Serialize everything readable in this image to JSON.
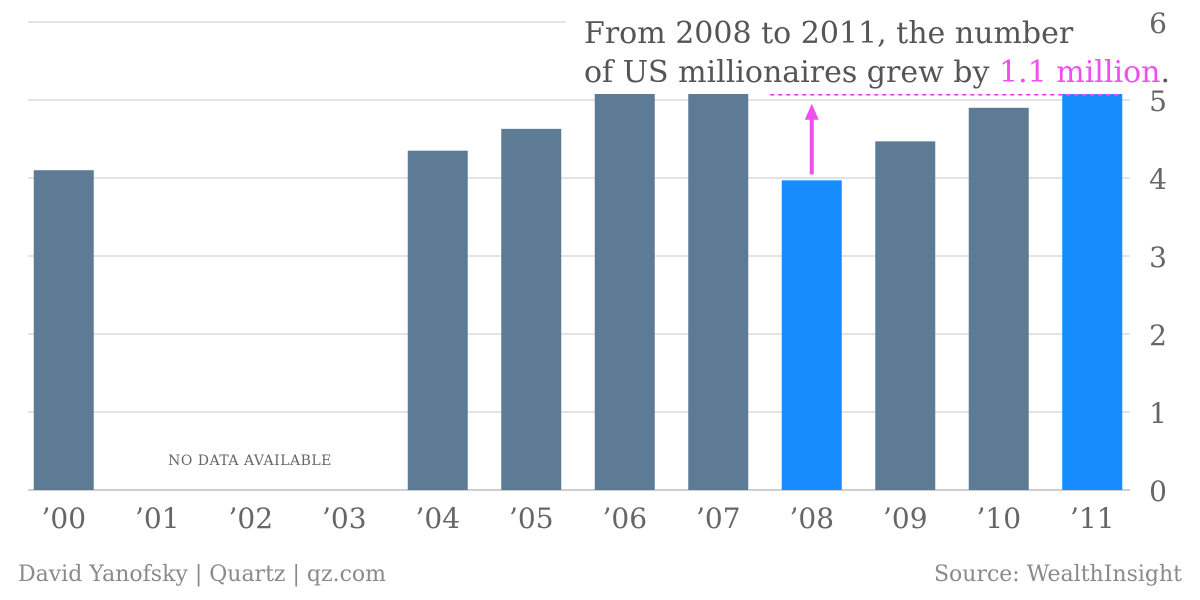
{
  "chart_data": {
    "type": "bar",
    "title_line1": "From 2008 to 2011, the number",
    "title_line2_prefix": "of US millionaires grew by ",
    "title_highlight": "1.1 million",
    "title_line2_suffix": ".",
    "categories": [
      "’00",
      "’01",
      "’02",
      "’03",
      "’04",
      "’05",
      "’06",
      "’07",
      "’08",
      "’09",
      "’10",
      "’11"
    ],
    "values": [
      4.1,
      null,
      null,
      null,
      4.35,
      4.63,
      5.1,
      5.27,
      3.97,
      4.47,
      4.9,
      5.08
    ],
    "highlighted": [
      "’08",
      "’11"
    ],
    "ylim": [
      0,
      6
    ],
    "yticks": [
      "0",
      "1",
      "2",
      "3",
      "4",
      "5",
      "6"
    ],
    "y_axis_position": "right",
    "grid": true,
    "no_data_label": "NO DATA AVAILABLE",
    "annotation": {
      "from_category": "’08",
      "to_category": "’11",
      "difference": 1.1
    },
    "colors": {
      "bar": "#5e7b96",
      "highlight_bar": "#178cff",
      "annotation": "#f04ff0",
      "grid": "#e3e3e3",
      "text": "#555555",
      "tick": "#666666"
    }
  },
  "footer": {
    "credit": "David Yanofsky | Quartz | qz.com",
    "source": "Source: WealthInsight"
  }
}
